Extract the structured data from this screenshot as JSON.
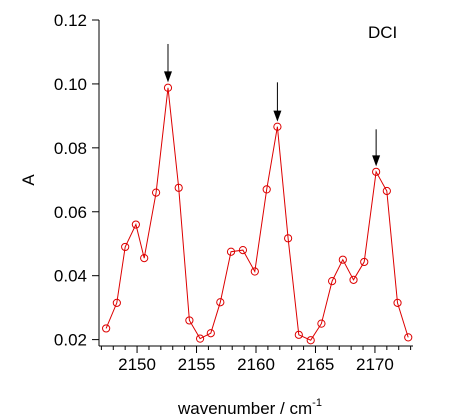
{
  "chart_data": {
    "type": "line",
    "title": "",
    "annotation": "DCI",
    "xlabel": "wavenumber / cm",
    "xlabel_superscript": "-1",
    "ylabel": "A",
    "xlim": [
      2146.8,
      2173.2
    ],
    "ylim": [
      0.018,
      0.12
    ],
    "xticks": [
      2150,
      2155,
      2160,
      2165,
      2170
    ],
    "xtick_labels": [
      "2150",
      "2155",
      "2160",
      "2165",
      "2170"
    ],
    "yticks": [
      0.02,
      0.04,
      0.06,
      0.08,
      0.1,
      0.12
    ],
    "ytick_labels": [
      "0.02",
      "0.04",
      "0.06",
      "0.08",
      "0.10",
      "0.12"
    ],
    "grid": false,
    "series": [
      {
        "color": "#dd0000",
        "marker": "open-circle",
        "x": [
          2147.4,
          2148.3,
          2149.0,
          2149.9,
          2150.6,
          2151.6,
          2152.6,
          2153.5,
          2154.4,
          2155.3,
          2156.2,
          2157.0,
          2157.9,
          2158.9,
          2159.9,
          2160.9,
          2161.8,
          2162.7,
          2163.6,
          2164.6,
          2165.5,
          2166.4,
          2167.3,
          2168.2,
          2169.1,
          2170.1,
          2171.0,
          2171.9,
          2172.8
        ],
        "y": [
          0.0235,
          0.0315,
          0.049,
          0.056,
          0.0455,
          0.066,
          0.0988,
          0.0675,
          0.026,
          0.0203,
          0.022,
          0.0317,
          0.0475,
          0.048,
          0.0413,
          0.067,
          0.0866,
          0.0517,
          0.0215,
          0.0198,
          0.025,
          0.0383,
          0.045,
          0.0387,
          0.0443,
          0.0725,
          0.0665,
          0.0315,
          0.0207
        ]
      }
    ],
    "arrows": [
      {
        "x": 2152.6,
        "y_top": 0.1125,
        "y_tip": 0.1005
      },
      {
        "x": 2161.8,
        "y_top": 0.1005,
        "y_tip": 0.0882
      },
      {
        "x": 2170.1,
        "y_top": 0.0858,
        "y_tip": 0.0742
      }
    ]
  }
}
